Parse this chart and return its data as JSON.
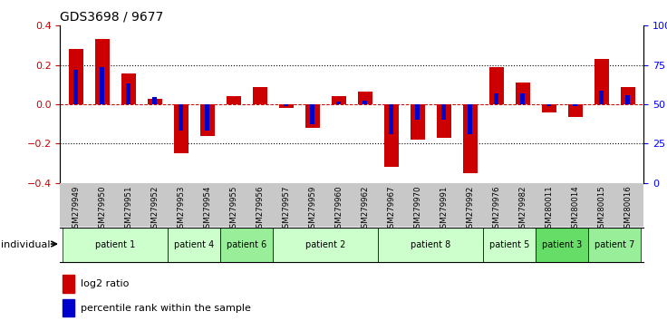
{
  "title": "GDS3698 / 9677",
  "samples": [
    "GSM279949",
    "GSM279950",
    "GSM279951",
    "GSM279952",
    "GSM279953",
    "GSM279954",
    "GSM279955",
    "GSM279956",
    "GSM279957",
    "GSM279959",
    "GSM279960",
    "GSM279962",
    "GSM279967",
    "GSM279970",
    "GSM279991",
    "GSM279992",
    "GSM279976",
    "GSM279982",
    "GSM280011",
    "GSM280014",
    "GSM280015",
    "GSM280016"
  ],
  "log2_ratio": [
    0.28,
    0.33,
    0.155,
    0.03,
    -0.25,
    -0.16,
    0.04,
    0.09,
    -0.02,
    -0.12,
    0.04,
    0.065,
    -0.32,
    -0.18,
    -0.17,
    -0.35,
    0.19,
    0.11,
    -0.04,
    -0.065,
    0.23,
    0.09
  ],
  "percentile_rank": [
    0.175,
    0.19,
    0.105,
    0.035,
    -0.135,
    -0.135,
    0.0,
    0.0,
    -0.01,
    -0.1,
    0.015,
    0.02,
    -0.15,
    -0.08,
    -0.08,
    -0.15,
    0.055,
    0.055,
    -0.01,
    -0.01,
    0.07,
    0.045
  ],
  "patients": [
    {
      "label": "patient 1",
      "start": 0,
      "end": 3,
      "color": "#ccffcc"
    },
    {
      "label": "patient 4",
      "start": 4,
      "end": 5,
      "color": "#ccffcc"
    },
    {
      "label": "patient 6",
      "start": 6,
      "end": 7,
      "color": "#99ee99"
    },
    {
      "label": "patient 2",
      "start": 8,
      "end": 11,
      "color": "#ccffcc"
    },
    {
      "label": "patient 8",
      "start": 12,
      "end": 15,
      "color": "#ccffcc"
    },
    {
      "label": "patient 5",
      "start": 16,
      "end": 17,
      "color": "#ccffcc"
    },
    {
      "label": "patient 3",
      "start": 18,
      "end": 19,
      "color": "#66dd66"
    },
    {
      "label": "patient 7",
      "start": 20,
      "end": 21,
      "color": "#99ee99"
    }
  ],
  "bar_color_red": "#cc0000",
  "bar_color_blue": "#0000cc",
  "ylim": [
    -0.4,
    0.4
  ],
  "yticks_left": [
    -0.4,
    -0.2,
    0.0,
    0.2,
    0.4
  ],
  "yticks_right": [
    0,
    25,
    50,
    75,
    100
  ],
  "dotted_line_y": [
    0.2,
    -0.2
  ],
  "zero_line_color": "#cc0000",
  "background_color": "#ffffff",
  "tick_area_color": "#c8c8c8",
  "bar_width": 0.55
}
